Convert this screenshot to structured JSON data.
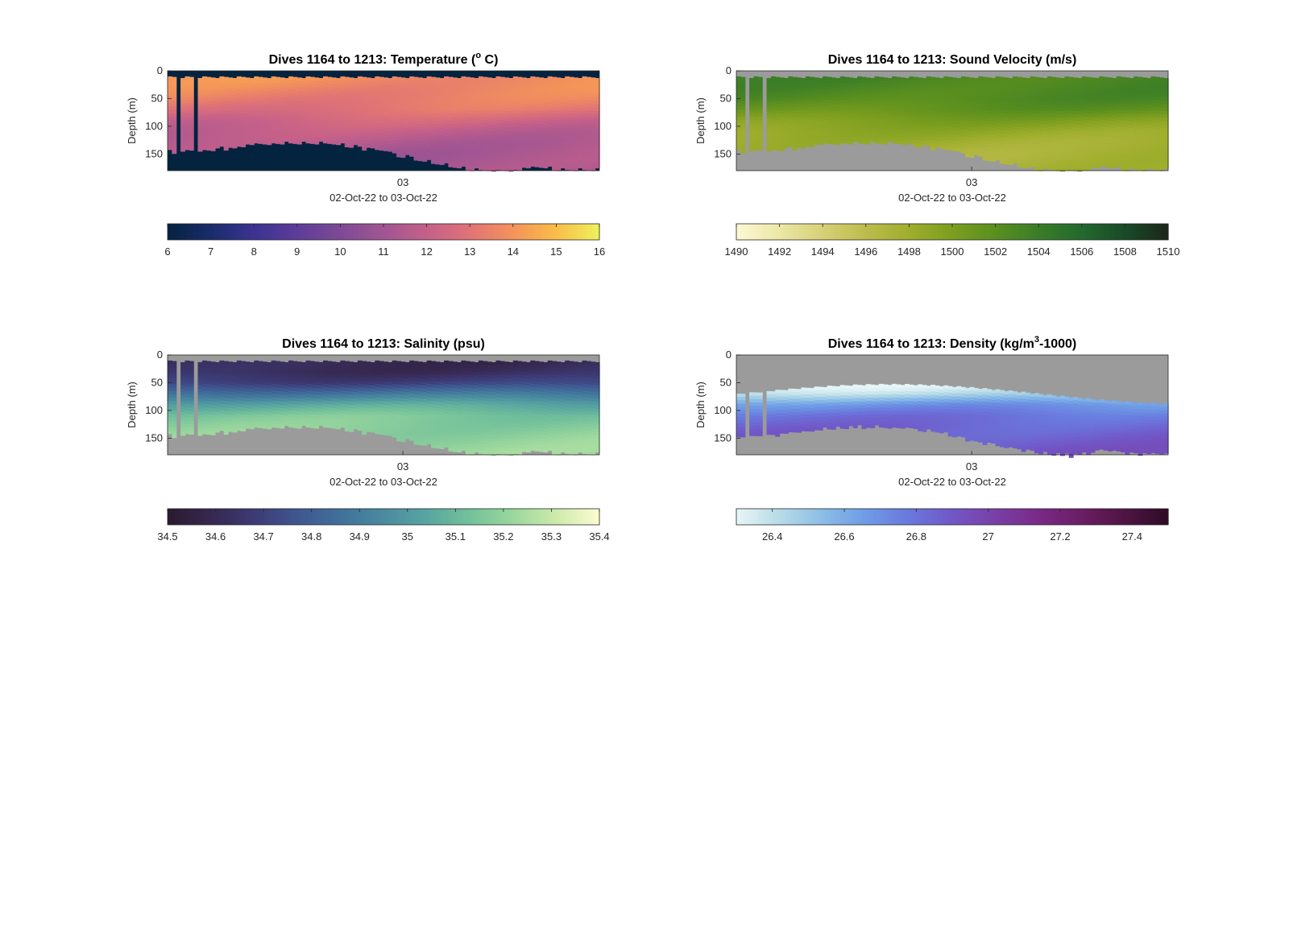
{
  "chart_data": [
    {
      "type": "heatmap",
      "title_main": "Dives 1164 to 1213: Temperature (",
      "title_sup": "o",
      "title_end": " C)",
      "ylabel": "Depth (m)",
      "xtick": "03",
      "xlabel": "02-Oct-22 to 03-Oct-22",
      "yticks": [
        "0",
        "50",
        "100",
        "150"
      ],
      "ylim": [
        0,
        180
      ],
      "colorbar": {
        "min": 6,
        "max": 16,
        "ticks": [
          "6",
          "7",
          "8",
          "9",
          "10",
          "11",
          "12",
          "13",
          "14",
          "15",
          "16"
        ]
      },
      "colors": {
        "colormap": [
          "#03233f",
          "#1a2c6b",
          "#3b3391",
          "#5e3c99",
          "#7d4a95",
          "#a15592",
          "#c4608a",
          "#e07376",
          "#f4935a",
          "#f9bd48",
          "#eef15f"
        ],
        "mask": "#03233f",
        "frame": "#262626"
      },
      "profile": {
        "depth": [
          10,
          30,
          50,
          70,
          90,
          110,
          130,
          150,
          170
        ],
        "values": [
          13.9,
          13.7,
          13.4,
          13.0,
          12.3,
          11.8,
          11.5,
          11.3,
          11.2
        ]
      }
    },
    {
      "type": "heatmap",
      "title_main": "Dives 1164 to 1213: Sound Velocity (m/s)",
      "title_sup": "",
      "title_end": "",
      "ylabel": "Depth (m)",
      "xtick": "03",
      "xlabel": "02-Oct-22 to 03-Oct-22",
      "yticks": [
        "0",
        "50",
        "100",
        "150"
      ],
      "ylim": [
        0,
        180
      ],
      "colorbar": {
        "min": 1490,
        "max": 1510,
        "ticks": [
          "1490",
          "1492",
          "1494",
          "1496",
          "1498",
          "1500",
          "1502",
          "1504",
          "1506",
          "1508",
          "1510"
        ]
      },
      "colors": {
        "colormap": [
          "#fdf8d4",
          "#ece7a6",
          "#d6d076",
          "#bcbc4c",
          "#9fae2d",
          "#7d9e1f",
          "#5a8f1f",
          "#3a7d27",
          "#23692d",
          "#1a4a28",
          "#1b2718"
        ],
        "mask": "#9b9b9b",
        "frame": "#262626"
      },
      "profile": {
        "depth": [
          10,
          30,
          50,
          70,
          90,
          110,
          130,
          150,
          170
        ],
        "values": [
          1503.2,
          1503.0,
          1502.6,
          1501.5,
          1499.8,
          1498.6,
          1497.9,
          1497.5,
          1497.3
        ]
      }
    },
    {
      "type": "heatmap",
      "title_main": "Dives 1164 to 1213: Salinity (psu)",
      "title_sup": "",
      "title_end": "",
      "ylabel": "Depth (m)",
      "xtick": "03",
      "xlabel": "02-Oct-22 to 03-Oct-22",
      "yticks": [
        "0",
        "50",
        "100",
        "150"
      ],
      "ylim": [
        0,
        180
      ],
      "colorbar": {
        "min": 34.5,
        "max": 35.4,
        "ticks": [
          "34.5",
          "34.6",
          "34.7",
          "34.8",
          "34.9",
          "35",
          "35.1",
          "35.2",
          "35.3",
          "35.4"
        ]
      },
      "colors": {
        "colormap": [
          "#2a1a2e",
          "#36284f",
          "#3d3a75",
          "#3f5690",
          "#40719a",
          "#4a8aa0",
          "#58a5a0",
          "#73c19b",
          "#9bd79d",
          "#cdeaab",
          "#fdfbd2"
        ],
        "mask": "#9b9b9b",
        "frame": "#262626"
      },
      "profile": {
        "depth": [
          10,
          30,
          50,
          70,
          90,
          110,
          130,
          150,
          170
        ],
        "values": [
          34.6,
          34.62,
          34.7,
          34.88,
          35.05,
          35.15,
          35.18,
          35.2,
          35.21
        ]
      }
    },
    {
      "type": "heatmap",
      "title_main": "Dives 1164 to 1213: Density (kg/m",
      "title_sup": "3",
      "title_end": "-1000)",
      "ylabel": "Depth (m)",
      "xtick": "03",
      "xlabel": "02-Oct-22 to 03-Oct-22",
      "yticks": [
        "0",
        "50",
        "100",
        "150"
      ],
      "ylim": [
        0,
        180
      ],
      "colorbar": {
        "min": 26.3,
        "max": 27.5,
        "ticks": [
          "26.4",
          "26.6",
          "26.8",
          "27",
          "27.2",
          "27.4"
        ]
      },
      "colors": {
        "colormap": [
          "#e8f6f7",
          "#b7dbe7",
          "#8bbde6",
          "#6e9be6",
          "#6a78dd",
          "#7157c7",
          "#7a3fa7",
          "#7a2a86",
          "#6b1d65",
          "#4f1443",
          "#2f0b26"
        ],
        "mask": "#9b9b9b",
        "frame": "#262626"
      },
      "profile": {
        "depth": [
          60,
          70,
          80,
          90,
          110,
          130,
          150,
          170
        ],
        "values": [
          26.35,
          26.42,
          26.55,
          26.68,
          26.8,
          26.85,
          26.88,
          26.9
        ]
      }
    }
  ]
}
